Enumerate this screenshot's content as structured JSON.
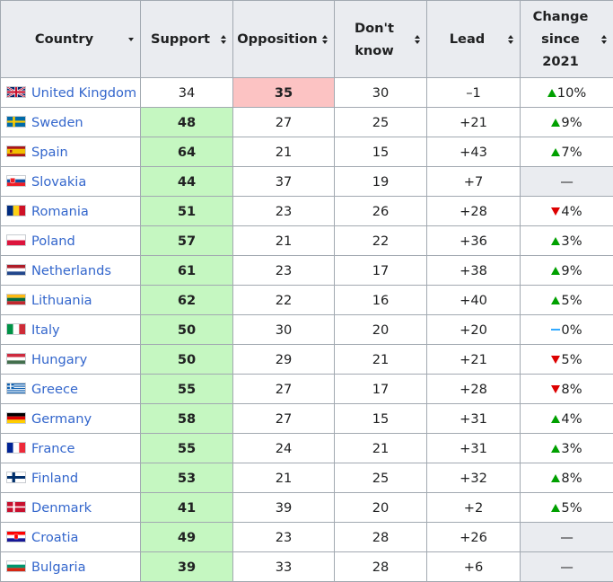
{
  "headers": {
    "country": "Country",
    "support": "Support",
    "opposition": "Opposition",
    "dont_know_line1": "Don't",
    "dont_know_line2": "know",
    "lead": "Lead",
    "change_line1": "Change",
    "change_line2": "since",
    "change_line3": "2021"
  },
  "colors": {
    "support_winner": "#c5f7c1",
    "opposition_winner": "#fcc3c3",
    "increase_arrow": "#00a000",
    "decrease_arrow": "#dd0000",
    "steady_marker": "#33aaff",
    "link": "#3366cc"
  },
  "rows": [
    {
      "country": "United Kingdom",
      "flag": "uk-flag-icon",
      "support": "34",
      "opposition": "35",
      "dont_know": "30",
      "lead": "–1",
      "change": "10%",
      "change_dir": "up",
      "winner": "opposition"
    },
    {
      "country": "Sweden",
      "flag": "sweden-flag-icon",
      "support": "48",
      "opposition": "27",
      "dont_know": "25",
      "lead": "+21",
      "change": "9%",
      "change_dir": "up",
      "winner": "support"
    },
    {
      "country": "Spain",
      "flag": "spain-flag-icon",
      "support": "64",
      "opposition": "21",
      "dont_know": "15",
      "lead": "+43",
      "change": "7%",
      "change_dir": "up",
      "winner": "support"
    },
    {
      "country": "Slovakia",
      "flag": "slovakia-flag-icon",
      "support": "44",
      "opposition": "37",
      "dont_know": "19",
      "lead": "+7",
      "change": "—",
      "change_dir": "none",
      "winner": "support"
    },
    {
      "country": "Romania",
      "flag": "romania-flag-icon",
      "support": "51",
      "opposition": "23",
      "dont_know": "26",
      "lead": "+28",
      "change": "4%",
      "change_dir": "down",
      "winner": "support"
    },
    {
      "country": "Poland",
      "flag": "poland-flag-icon",
      "support": "57",
      "opposition": "21",
      "dont_know": "22",
      "lead": "+36",
      "change": "3%",
      "change_dir": "up",
      "winner": "support"
    },
    {
      "country": "Netherlands",
      "flag": "netherlands-flag-icon",
      "support": "61",
      "opposition": "23",
      "dont_know": "17",
      "lead": "+38",
      "change": "9%",
      "change_dir": "up",
      "winner": "support"
    },
    {
      "country": "Lithuania",
      "flag": "lithuania-flag-icon",
      "support": "62",
      "opposition": "22",
      "dont_know": "16",
      "lead": "+40",
      "change": "5%",
      "change_dir": "up",
      "winner": "support"
    },
    {
      "country": "Italy",
      "flag": "italy-flag-icon",
      "support": "50",
      "opposition": "30",
      "dont_know": "20",
      "lead": "+20",
      "change": "0%",
      "change_dir": "steady",
      "winner": "support"
    },
    {
      "country": "Hungary",
      "flag": "hungary-flag-icon",
      "support": "50",
      "opposition": "29",
      "dont_know": "21",
      "lead": "+21",
      "change": "5%",
      "change_dir": "down",
      "winner": "support"
    },
    {
      "country": "Greece",
      "flag": "greece-flag-icon",
      "support": "55",
      "opposition": "27",
      "dont_know": "17",
      "lead": "+28",
      "change": "8%",
      "change_dir": "down",
      "winner": "support"
    },
    {
      "country": "Germany",
      "flag": "germany-flag-icon",
      "support": "58",
      "opposition": "27",
      "dont_know": "15",
      "lead": "+31",
      "change": "4%",
      "change_dir": "up",
      "winner": "support"
    },
    {
      "country": "France",
      "flag": "france-flag-icon",
      "support": "55",
      "opposition": "24",
      "dont_know": "21",
      "lead": "+31",
      "change": "3%",
      "change_dir": "up",
      "winner": "support"
    },
    {
      "country": "Finland",
      "flag": "finland-flag-icon",
      "support": "53",
      "opposition": "21",
      "dont_know": "25",
      "lead": "+32",
      "change": "8%",
      "change_dir": "up",
      "winner": "support"
    },
    {
      "country": "Denmark",
      "flag": "denmark-flag-icon",
      "support": "41",
      "opposition": "39",
      "dont_know": "20",
      "lead": "+2",
      "change": "5%",
      "change_dir": "up",
      "winner": "support"
    },
    {
      "country": "Croatia",
      "flag": "croatia-flag-icon",
      "support": "49",
      "opposition": "23",
      "dont_know": "28",
      "lead": "+26",
      "change": "—",
      "change_dir": "none",
      "winner": "support"
    },
    {
      "country": "Bulgaria",
      "flag": "bulgaria-flag-icon",
      "support": "39",
      "opposition": "33",
      "dont_know": "28",
      "lead": "+6",
      "change": "—",
      "change_dir": "none",
      "winner": "support"
    }
  ]
}
